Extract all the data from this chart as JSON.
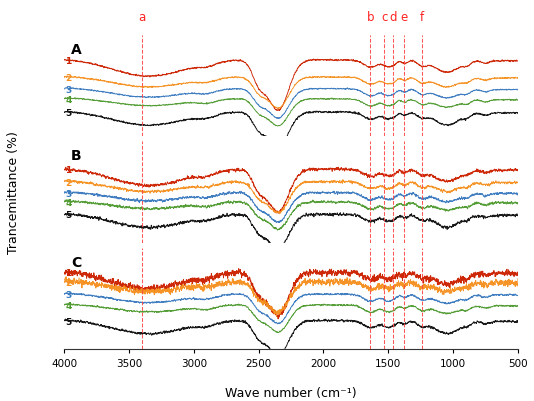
{
  "xlabel": "Wave number (cm⁻¹)",
  "ylabel": "Trancemittance (%)",
  "panels": [
    "A",
    "B",
    "C"
  ],
  "line_colors": [
    "#cc2200",
    "#f59020",
    "#3a7abf",
    "#4e9a30",
    "#111111"
  ],
  "line_labels": [
    "1",
    "2",
    "3",
    "4",
    "5"
  ],
  "vlines_x": [
    3400,
    1640,
    1530,
    1460,
    1380,
    1240
  ],
  "vlines_label": [
    "a",
    "b",
    "c",
    "d",
    "e",
    "f"
  ],
  "vline_color": "#ff4444",
  "label_color": "#ff2222",
  "bg_color": "#ffffff",
  "seed": 42
}
